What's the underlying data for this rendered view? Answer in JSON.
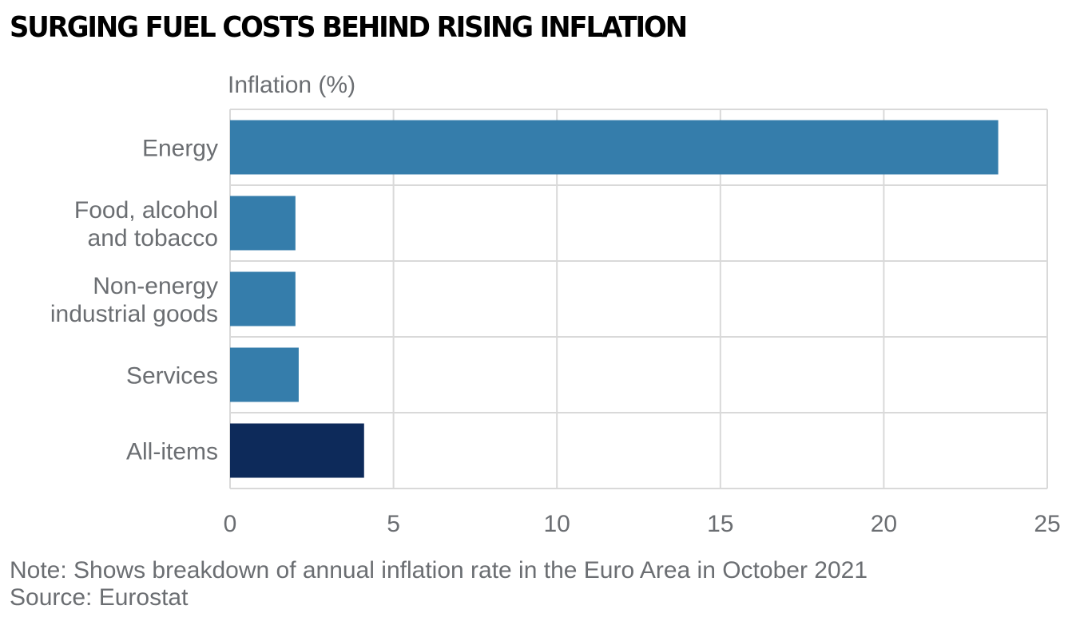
{
  "chart_data": {
    "type": "bar",
    "orientation": "horizontal",
    "title": "SURGING FUEL COSTS BEHIND RISING INFLATION",
    "xlabel": "Inflation (%)",
    "ylabel": "",
    "categories": [
      [
        "Energy"
      ],
      [
        "Food, alcohol",
        "and tobacco"
      ],
      [
        "Non-energy",
        "industrial goods"
      ],
      [
        "Services"
      ],
      [
        "All-items"
      ]
    ],
    "values": [
      23.5,
      2.0,
      2.0,
      2.1,
      4.1
    ],
    "bar_colors": [
      "#357dab",
      "#357dab",
      "#357dab",
      "#357dab",
      "#0d2a5a"
    ],
    "xlim": [
      0,
      25
    ],
    "xticks": [
      0,
      5,
      10,
      15,
      20,
      25
    ],
    "grid": true,
    "legend": "none"
  },
  "colors": {
    "bar": "#357dab",
    "highlight_bar": "#0d2a5a",
    "grid": "#d9d9d9",
    "text": "#6b6e72",
    "title": "#000000"
  },
  "footer": {
    "note": "Note: Shows breakdown of annual inflation rate in the Euro Area in October 2021",
    "source": "Source: Eurostat"
  }
}
